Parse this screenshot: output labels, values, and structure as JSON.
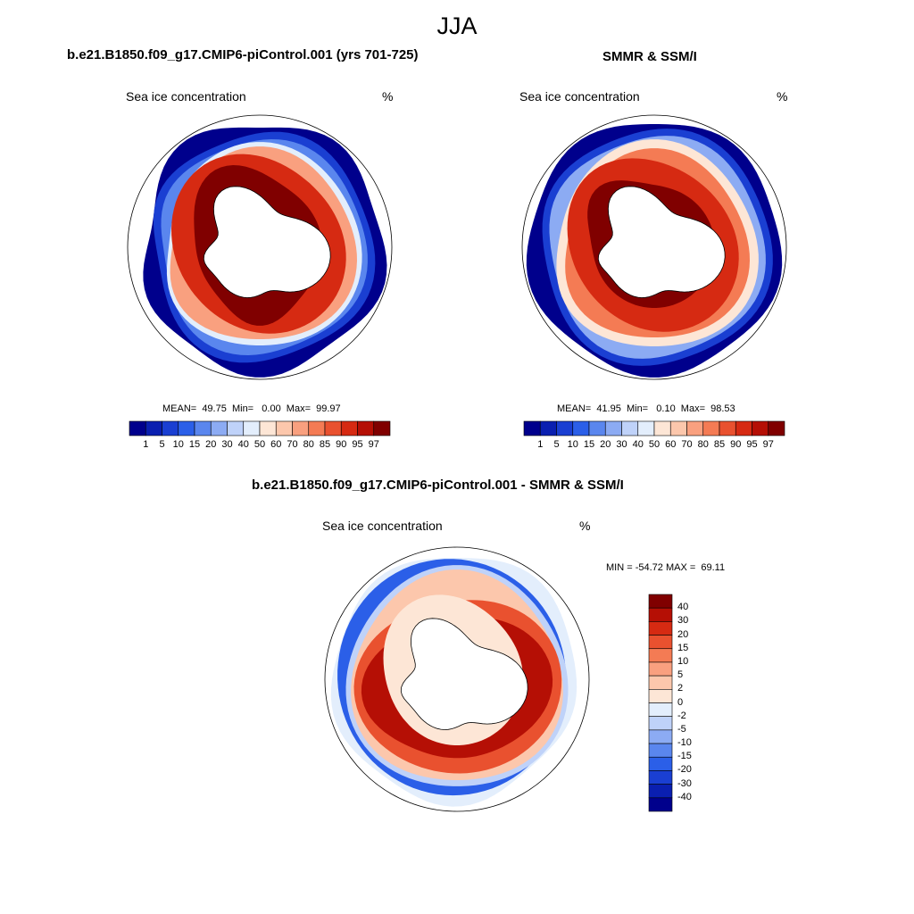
{
  "season": "JJA",
  "panels": [
    {
      "title": "b.e21.B1850.f09_g17.CMIP6-piControl.001 (yrs 701-725)",
      "variable": "Sea ice concentration",
      "units": "%",
      "stats": "MEAN=  49.75  Min=   0.00  Max=  99.97"
    },
    {
      "title": "SMMR & SSM/I",
      "variable": "Sea ice concentration",
      "units": "%",
      "stats": "MEAN=  41.95  Min=   0.10  Max=  98.53"
    },
    {
      "title": "b.e21.B1850.f09_g17.CMIP6-piControl.001 - SMMR & SSM/I",
      "variable": "Sea ice concentration",
      "units": "%",
      "stats": "MIN = -54.72 MAX =  69.11"
    }
  ],
  "concentration_colorbar": {
    "levels": [
      "1",
      "5",
      "10",
      "15",
      "20",
      "30",
      "40",
      "50",
      "60",
      "70",
      "80",
      "85",
      "90",
      "95",
      "97"
    ],
    "colors": [
      "#00008c",
      "#0a1fb0",
      "#1a3fd2",
      "#2b5fe8",
      "#5a86ee",
      "#8cabf3",
      "#bfd2f9",
      "#e3eefc",
      "#fde6d6",
      "#fcc7ac",
      "#f9a07f",
      "#f47b54",
      "#e9512f",
      "#d62a12",
      "#b50f05",
      "#800000"
    ]
  },
  "difference_colorbar": {
    "levels": [
      "40",
      "30",
      "20",
      "15",
      "10",
      "5",
      "2",
      "0",
      "-2",
      "-5",
      "-10",
      "-15",
      "-20",
      "-30",
      "-40"
    ],
    "colors": [
      "#800000",
      "#b50f05",
      "#d62a12",
      "#e9512f",
      "#f47b54",
      "#f9a07f",
      "#fcc7ac",
      "#fde6d6",
      "#e3eefc",
      "#bfd2f9",
      "#8cabf3",
      "#5a86ee",
      "#2b5fe8",
      "#1a3fd2",
      "#0a1fb0",
      "#00008c"
    ]
  }
}
